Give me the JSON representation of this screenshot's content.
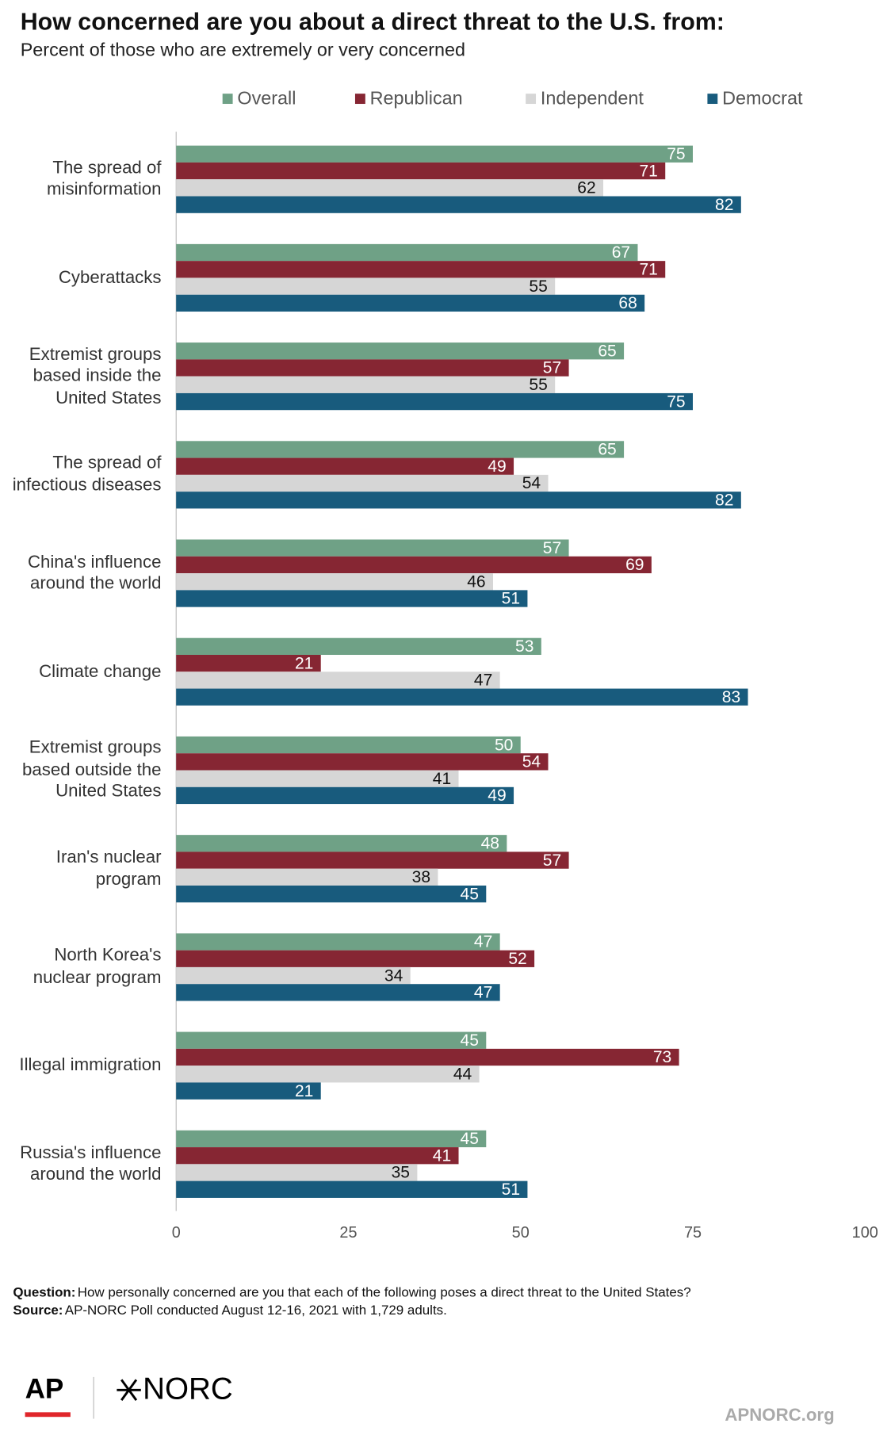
{
  "chart_data": {
    "type": "bar",
    "orientation": "horizontal",
    "title": "How concerned are you about a direct threat to the U.S. from:",
    "subtitle": "Percent of those who are extremely or very concerned",
    "categories": [
      "The spread of misinformation",
      "Cyberattacks",
      "Extremist groups based inside the United States",
      "The spread of infectious diseases",
      "China's influence around the world",
      "Climate change",
      "Extremist groups based outside the United States",
      "Iran's nuclear program",
      "North Korea's nuclear program",
      "Illegal immigration",
      "Russia's influence around the world"
    ],
    "series": [
      {
        "name": "Overall",
        "color": "#6fa186",
        "values": [
          75,
          67,
          65,
          65,
          57,
          53,
          50,
          48,
          47,
          45,
          45
        ]
      },
      {
        "name": "Republican",
        "color": "#862633",
        "values": [
          71,
          71,
          57,
          49,
          69,
          21,
          54,
          57,
          52,
          73,
          41
        ]
      },
      {
        "name": "Independent",
        "color": "#d6d6d6",
        "values": [
          62,
          55,
          55,
          54,
          46,
          47,
          41,
          38,
          34,
          44,
          35
        ]
      },
      {
        "name": "Democrat",
        "color": "#185b7d",
        "values": [
          82,
          68,
          75,
          82,
          51,
          83,
          49,
          45,
          47,
          21,
          51
        ]
      }
    ],
    "xlim": [
      0,
      100
    ],
    "xticks": [
      0,
      25,
      50,
      75,
      100
    ],
    "grid": false,
    "legend": "top",
    "question_label": "Question:",
    "question": "How personally concerned are you that each of the following poses a direct threat to the United States?",
    "source_label": "Source:",
    "source": "AP-NORC Poll conducted August 12-16, 2021 with 1,729 adults.",
    "logo_ap": "AP",
    "logo_norc": "NORC",
    "website": "APNORC.org"
  }
}
